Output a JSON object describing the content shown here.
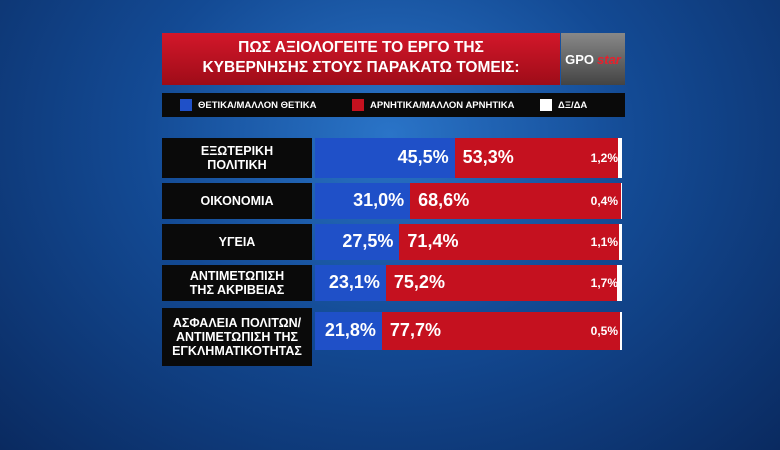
{
  "chart_data": {
    "type": "bar",
    "orientation": "horizontal",
    "stacked": true,
    "title": [
      "ΠΩΣ ΑΞΙΟΛΟΓΕΙΤΕ ΤΟ ΕΡΓΟ ΤΗΣ",
      "ΚΥΒΕΡΝΗΣΗΣ ΣΤΟΥΣ ΠΑΡΑΚΑΤΩ ΤΟΜΕΙΣ:"
    ],
    "logo": [
      "GPO",
      "star"
    ],
    "categories": [
      "ΕΞΩΤΕΡΙΚΗ\nΠΟΛΙΤΙΚΗ",
      "ΟΙΚΟΝΟΜΙΑ",
      "ΥΓΕΙΑ",
      "ΑΝΤΙΜΕΤΩΠΙΣΗ\nΤΗΣ ΑΚΡΙΒΕΙΑΣ",
      "ΑΣΦΑΛΕΙΑ ΠΟΛΙΤΩΝ/\nΑΝΤΙΜΕΤΩΠΙΣΗ ΤΗΣ\nΕΓΚΛΗΜΑΤΙΚΟΤΗΤΑΣ"
    ],
    "series": [
      {
        "name": "ΘΕΤΙΚΑ/ΜΑΛΛΟΝ ΘΕΤΙΚΑ",
        "color": "#1f50c8",
        "values": [
          45.5,
          31.0,
          27.5,
          23.1,
          21.8
        ],
        "value_labels": [
          "45,5%",
          "31,0%",
          "27,5%",
          "23,1%",
          "21,8%"
        ]
      },
      {
        "name": "ΑΡΝΗΤΙΚΑ/ΜΑΛΛΟΝ ΑΡΝΗΤΙΚΑ",
        "color": "#c5111f",
        "values": [
          53.3,
          68.6,
          71.4,
          75.2,
          77.7
        ],
        "value_labels": [
          "53,3%",
          "68,6%",
          "71,4%",
          "75,2%",
          "77,7%"
        ]
      },
      {
        "name": "ΔΞ/ΔΑ",
        "color": "#ffffff",
        "values": [
          1.2,
          0.4,
          1.1,
          1.7,
          0.5
        ],
        "value_labels": [
          "1,2%",
          "0,4%",
          "1,1%",
          "1,7%",
          "0,5%"
        ]
      }
    ],
    "xlim": [
      0,
      100
    ]
  }
}
